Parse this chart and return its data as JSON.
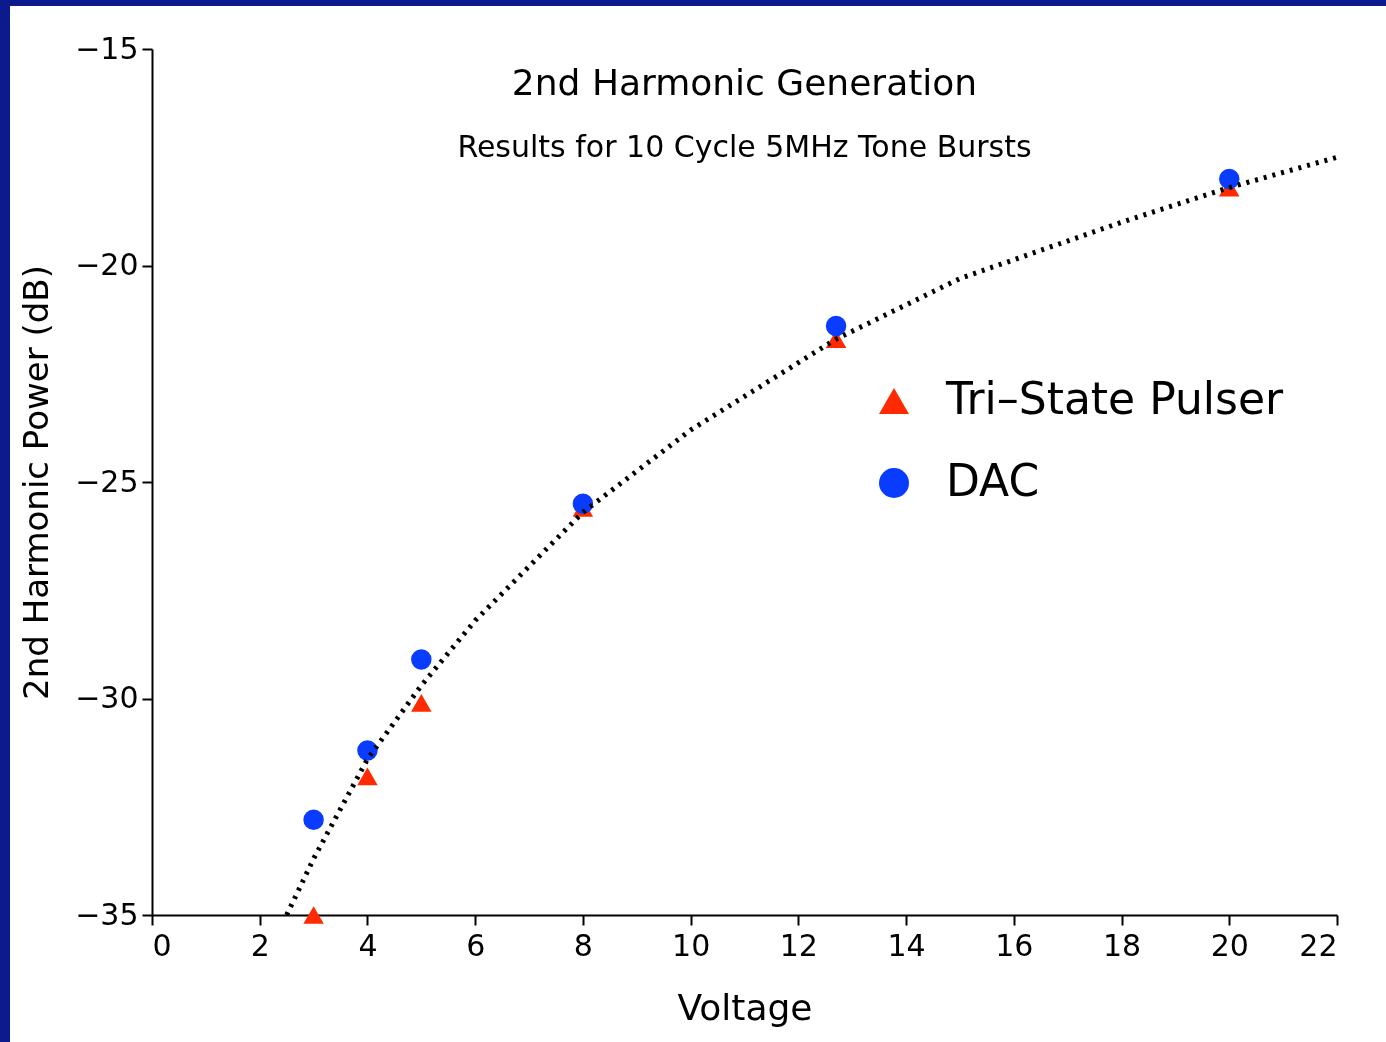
{
  "chart_data": {
    "type": "scatter",
    "title": "2nd Harmonic Generation",
    "subtitle": "Results for 10 Cycle 5MHz Tone Bursts",
    "xlabel": "Voltage",
    "ylabel": "2nd Harmonic Power (dB)",
    "xlim": [
      0,
      22
    ],
    "xticks": [
      0,
      2,
      4,
      6,
      8,
      10,
      12,
      14,
      16,
      18,
      20,
      22
    ],
    "ylim": [
      -35,
      -15
    ],
    "yticks": [
      -35,
      -30,
      -25,
      -20,
      -15
    ],
    "grid": false,
    "legend": "right",
    "series": [
      {
        "name": "Tri–State Pulser",
        "color": "#ff2a00",
        "marker": "triangle",
        "x": [
          3,
          4,
          5,
          8,
          12.7,
          20
        ],
        "values": [
          -35,
          -31.8,
          -30.1,
          -25.6,
          -21.7,
          -18.2
        ]
      },
      {
        "name": "DAC",
        "color": "#0a3cff",
        "marker": "circle",
        "x": [
          3,
          4,
          5,
          8,
          12.7,
          20
        ],
        "values": [
          -32.8,
          -31.2,
          -29.1,
          -25.5,
          -21.4,
          -18.0
        ]
      },
      {
        "type": "line",
        "color": "#000000",
        "line_style": "dotted",
        "marker": "none",
        "x": [
          2.5,
          3,
          4,
          5,
          6,
          8,
          10,
          12.7,
          15,
          18,
          20,
          22
        ],
        "values": [
          -35,
          -33.7,
          -31.4,
          -29.7,
          -28.2,
          -25.7,
          -23.8,
          -21.7,
          -20.3,
          -19.0,
          -18.2,
          -17.5
        ]
      }
    ]
  }
}
